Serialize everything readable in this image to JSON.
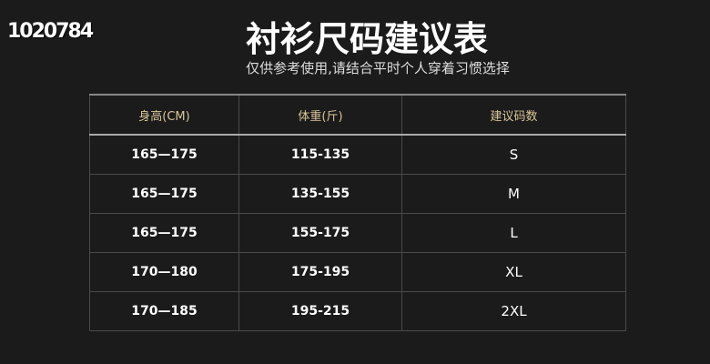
{
  "watermark": "1020784",
  "title": "衬衫尺码建议表",
  "subtitle": "仅供参考使用,请结合平时个人穿着习惯选择",
  "headers": [
    "身高(CM)",
    "体重(斤)",
    "建议码数"
  ],
  "rows": [
    [
      "165—175",
      "115-135",
      "S"
    ],
    [
      "165—175",
      "135-155",
      "M"
    ],
    [
      "165—175",
      "155-175",
      "L"
    ],
    [
      "170—180",
      "175-195",
      "XL"
    ],
    [
      "170—185",
      "195-215",
      "2XL"
    ]
  ]
}
